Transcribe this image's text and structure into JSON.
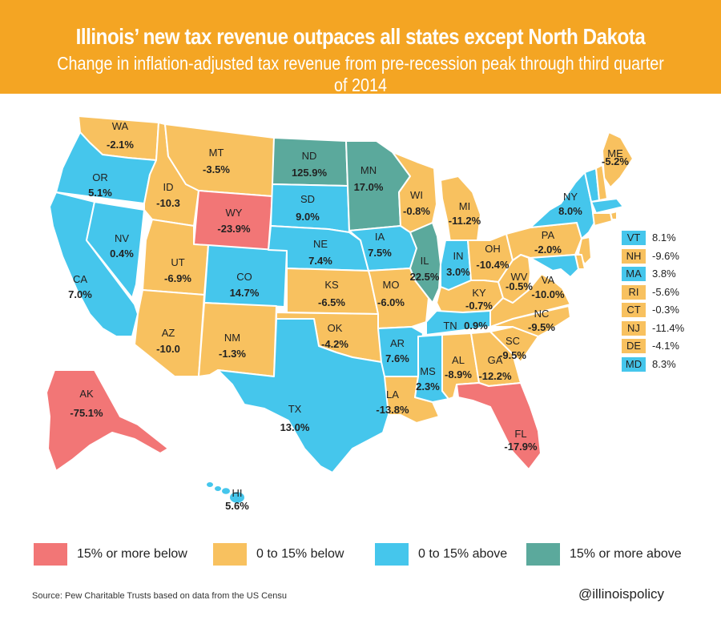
{
  "title": "Illinois’ new tax revenue outpaces all states except North Dakota",
  "subtitle": "Change in inflation-adjusted tax revenue from pre-recession peak through third quarter of 2014",
  "colors": {
    "far_below": "#F27676",
    "below": "#F8C15F",
    "above": "#45C6EC",
    "far_above": "#5BA99C",
    "banner": "#F4A523"
  },
  "categories": [
    {
      "key": "far_below",
      "label": "15% or more below"
    },
    {
      "key": "below",
      "label": "0 to 15% below"
    },
    {
      "key": "above",
      "label": "0 to 15% above"
    },
    {
      "key": "far_above",
      "label": "15% or more above"
    }
  ],
  "states": [
    {
      "abbr": "WA",
      "value": "-2.1%",
      "category": "below"
    },
    {
      "abbr": "OR",
      "value": "5.1%",
      "category": "above"
    },
    {
      "abbr": "CA",
      "value": "7.0%",
      "category": "above"
    },
    {
      "abbr": "NV",
      "value": "0.4%",
      "category": "above"
    },
    {
      "abbr": "ID",
      "value": "-10.3",
      "category": "below"
    },
    {
      "abbr": "MT",
      "value": "-3.5%",
      "category": "below"
    },
    {
      "abbr": "WY",
      "value": "-23.9%",
      "category": "far_below"
    },
    {
      "abbr": "UT",
      "value": "-6.9%",
      "category": "below"
    },
    {
      "abbr": "AZ",
      "value": "-10.0",
      "category": "below"
    },
    {
      "abbr": "CO",
      "value": "14.7%",
      "category": "above"
    },
    {
      "abbr": "NM",
      "value": "-1.3%",
      "category": "below"
    },
    {
      "abbr": "ND",
      "value": "125.9%",
      "category": "far_above"
    },
    {
      "abbr": "SD",
      "value": "9.0%",
      "category": "above"
    },
    {
      "abbr": "NE",
      "value": "7.4%",
      "category": "above"
    },
    {
      "abbr": "KS",
      "value": "-6.5%",
      "category": "below"
    },
    {
      "abbr": "OK",
      "value": "-4.2%",
      "category": "below"
    },
    {
      "abbr": "TX",
      "value": "13.0%",
      "category": "above"
    },
    {
      "abbr": "MN",
      "value": "17.0%",
      "category": "far_above"
    },
    {
      "abbr": "IA",
      "value": "7.5%",
      "category": "above"
    },
    {
      "abbr": "MO",
      "value": "-6.0%",
      "category": "below"
    },
    {
      "abbr": "AR",
      "value": "7.6%",
      "category": "above"
    },
    {
      "abbr": "LA",
      "value": "-13.8%",
      "category": "below"
    },
    {
      "abbr": "WI",
      "value": "-0.8%",
      "category": "below"
    },
    {
      "abbr": "IL",
      "value": "22.5%",
      "category": "far_above"
    },
    {
      "abbr": "MI",
      "value": "-11.2%",
      "category": "below"
    },
    {
      "abbr": "IN",
      "value": "3.0%",
      "category": "above"
    },
    {
      "abbr": "OH",
      "value": "-10.4%",
      "category": "below"
    },
    {
      "abbr": "KY",
      "value": "-0.7%",
      "category": "below"
    },
    {
      "abbr": "TN",
      "value": "0.9%",
      "category": "above"
    },
    {
      "abbr": "MS",
      "value": "2.3%",
      "category": "above"
    },
    {
      "abbr": "AL",
      "value": "-8.9%",
      "category": "below"
    },
    {
      "abbr": "GA",
      "value": "-12.2%",
      "category": "below"
    },
    {
      "abbr": "FL",
      "value": "-17.9%",
      "category": "far_below"
    },
    {
      "abbr": "SC",
      "value": "-9.5%",
      "category": "below"
    },
    {
      "abbr": "NC",
      "value": "-9.5%",
      "category": "below"
    },
    {
      "abbr": "VA",
      "value": "-10.0%",
      "category": "below"
    },
    {
      "abbr": "WV",
      "value": "-0.5%",
      "category": "below"
    },
    {
      "abbr": "PA",
      "value": "-2.0%",
      "category": "below"
    },
    {
      "abbr": "NY",
      "value": "8.0%",
      "category": "above"
    },
    {
      "abbr": "ME",
      "value": "-5.2%",
      "category": "below"
    },
    {
      "abbr": "AK",
      "value": "-75.1%",
      "category": "far_below"
    },
    {
      "abbr": "HI",
      "value": "5.6%",
      "category": "above"
    }
  ],
  "small_states": [
    {
      "abbr": "VT",
      "value": "8.1%",
      "category": "above"
    },
    {
      "abbr": "NH",
      "value": "-9.6%",
      "category": "below"
    },
    {
      "abbr": "MA",
      "value": "3.8%",
      "category": "above"
    },
    {
      "abbr": "RI",
      "value": "-5.6%",
      "category": "below"
    },
    {
      "abbr": "CT",
      "value": "-0.3%",
      "category": "below"
    },
    {
      "abbr": "NJ",
      "value": "-11.4%",
      "category": "below"
    },
    {
      "abbr": "DE",
      "value": "-4.1%",
      "category": "below"
    },
    {
      "abbr": "MD",
      "value": "8.3%",
      "category": "above"
    }
  ],
  "source": "Source: Pew Charitable Trusts based on data from the US Censu",
  "handle": "@illinoispolicy"
}
